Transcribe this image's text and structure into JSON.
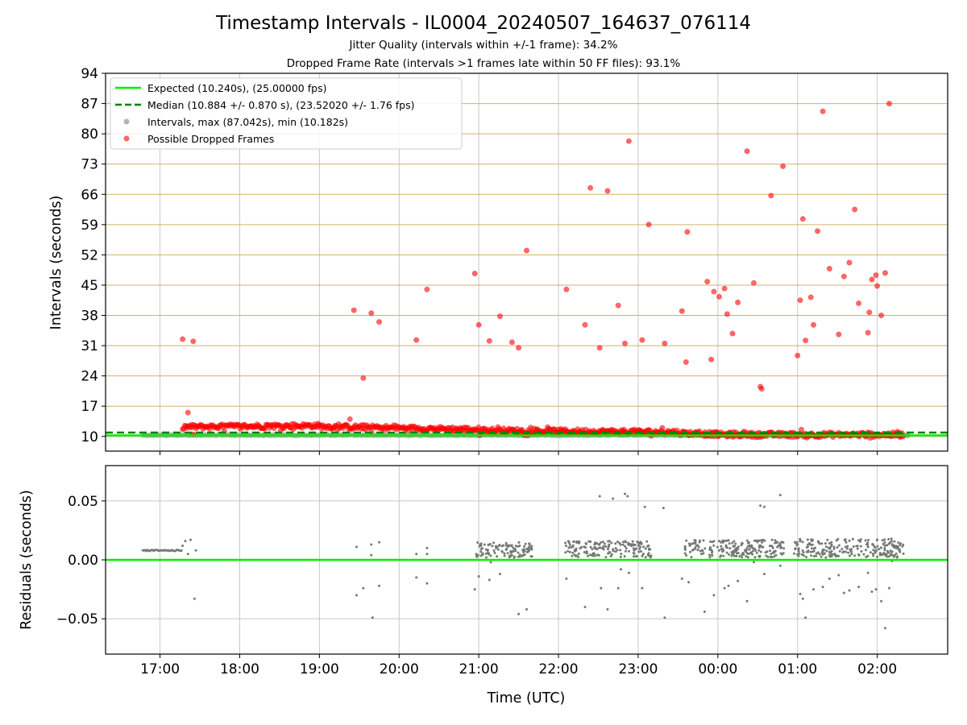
{
  "title": "Timestamp Intervals - IL0004_20240507_164637_076114",
  "subtitles": [
    "Jitter Quality (intervals within +/-1 frame): 34.2%",
    "Dropped Frame Rate (intervals >1 frames late within 50 FF files): 93.1%"
  ],
  "colors": {
    "expected": "#00ee00",
    "median": "#008000",
    "intervals": "#a0a0a0",
    "dropped": "#ff0000",
    "hgrid": "#d4b06a",
    "vgrid": "#c8c8c8",
    "residuals": "#777777"
  },
  "chart_data": [
    {
      "type": "scatter",
      "xlabel": "",
      "ylabel": "Intervals (seconds)",
      "xlim": [
        "16:19",
        "02:53"
      ],
      "ylim": [
        6.6,
        94
      ],
      "yticks": [
        10,
        17,
        24,
        31,
        38,
        45,
        52,
        59,
        66,
        73,
        80,
        87,
        94
      ],
      "grid": true,
      "legend_position": "top-left",
      "legend": [
        "Expected (10.240s), (25.00000 fps)",
        "Median (10.884 +/- 0.870 s), (23.52020 +/- 1.76 fps)",
        "Intervals, max (87.042s), min (10.182s)",
        "Possible Dropped Frames"
      ],
      "reference_lines": [
        {
          "name": "Expected (10.240s), (25.00000 fps)",
          "y": 10.24,
          "style": "solid"
        },
        {
          "name": "Median (10.884 +/- 0.870 s), (23.52020 +/- 1.76 fps)",
          "y": 10.884,
          "style": "dashed"
        }
      ],
      "series": [
        {
          "name": "Intervals, max (87.042s), min (10.182s)",
          "segments": [
            {
              "from": "16:47",
              "to": "17:17",
              "y": 10.3
            },
            {
              "from": "17:17",
              "to": "02:24",
              "y": 10.3
            }
          ]
        },
        {
          "name": "Possible Dropped Frames",
          "baseline_band": [
            {
              "from": "17:17",
              "to": "19:00",
              "y_from": 12.2,
              "y_to": 12.5
            },
            {
              "from": "19:00",
              "to": "21:00",
              "y_from": 12.3,
              "y_to": 11.6
            },
            {
              "from": "21:00",
              "to": "22:00",
              "y_from": 11.4,
              "y_to": 11.2
            },
            {
              "from": "22:00",
              "to": "23:30",
              "y_from": 11.2,
              "y_to": 11.0
            },
            {
              "from": "23:30",
              "to": "00:00",
              "y_from": 10.8,
              "y_to": 10.5
            },
            {
              "from": "00:00",
              "to": "02:20",
              "y_from": 10.4,
              "y_to": 10.4
            }
          ],
          "points": [
            [
              "17:17",
              32.5
            ],
            [
              "17:21",
              15.5
            ],
            [
              "17:25",
              10.5
            ],
            [
              "17:25",
              32.0
            ],
            [
              "19:26",
              39.2
            ],
            [
              "19:33",
              23.5
            ],
            [
              "19:39",
              38.5
            ],
            [
              "19:45",
              36.5
            ],
            [
              "19:23",
              14.0
            ],
            [
              "20:13",
              32.3
            ],
            [
              "20:21",
              44.0
            ],
            [
              "20:57",
              47.7
            ],
            [
              "21:00",
              35.8
            ],
            [
              "21:08",
              32.1
            ],
            [
              "21:16",
              37.8
            ],
            [
              "21:25",
              31.8
            ],
            [
              "21:30",
              30.5
            ],
            [
              "21:36",
              53.0
            ],
            [
              "22:06",
              44.0
            ],
            [
              "22:20",
              35.8
            ],
            [
              "22:24",
              67.5
            ],
            [
              "22:31",
              30.5
            ],
            [
              "22:37",
              66.8
            ],
            [
              "22:45",
              40.3
            ],
            [
              "22:50",
              31.5
            ],
            [
              "22:53",
              78.3
            ],
            [
              "23:03",
              32.3
            ],
            [
              "23:08",
              59.0
            ],
            [
              "23:20",
              31.5
            ],
            [
              "23:33",
              39.0
            ],
            [
              "23:36",
              27.2
            ],
            [
              "23:37",
              57.3
            ],
            [
              "23:52",
              45.8
            ],
            [
              "23:55",
              27.8
            ],
            [
              "23:57",
              43.5
            ],
            [
              "00:01",
              42.3
            ],
            [
              "00:05",
              44.2
            ],
            [
              "00:07",
              38.3
            ],
            [
              "00:11",
              33.8
            ],
            [
              "00:15",
              41.0
            ],
            [
              "00:22",
              76.0
            ],
            [
              "00:27",
              45.5
            ],
            [
              "00:32",
              21.5
            ],
            [
              "00:33",
              21.0
            ],
            [
              "00:40",
              65.7
            ],
            [
              "00:49",
              72.5
            ],
            [
              "01:00",
              28.7
            ],
            [
              "01:02",
              41.5
            ],
            [
              "01:04",
              60.3
            ],
            [
              "01:06",
              32.2
            ],
            [
              "01:10",
              42.2
            ],
            [
              "01:12",
              35.8
            ],
            [
              "01:15",
              57.5
            ],
            [
              "01:19",
              85.2
            ],
            [
              "01:24",
              48.8
            ],
            [
              "01:31",
              33.6
            ],
            [
              "01:35",
              47.0
            ],
            [
              "01:39",
              50.2
            ],
            [
              "01:43",
              62.5
            ],
            [
              "01:46",
              40.8
            ],
            [
              "01:53",
              34.0
            ],
            [
              "01:54",
              38.7
            ],
            [
              "01:56",
              46.3
            ],
            [
              "01:59",
              47.3
            ],
            [
              "02:00",
              44.8
            ],
            [
              "02:03",
              38.0
            ],
            [
              "02:06",
              47.8
            ],
            [
              "02:09",
              87.0
            ]
          ]
        }
      ]
    },
    {
      "type": "scatter",
      "xlabel": "Time (UTC)",
      "ylabel": "Residuals (seconds)",
      "xticks": [
        "17:00",
        "18:00",
        "19:00",
        "20:00",
        "21:00",
        "22:00",
        "23:00",
        "00:00",
        "01:00",
        "02:00"
      ],
      "yticks": [
        0.05,
        0.0,
        -0.05
      ],
      "ytick_labels": [
        "0.05",
        "0.00",
        "−0.05"
      ],
      "ylim": [
        -0.08,
        0.08
      ],
      "grid": true,
      "reference_lines": [
        {
          "y": 0.0,
          "style": "solid"
        }
      ],
      "series": [
        {
          "name": "",
          "segments": [
            {
              "from": "16:47",
              "to": "17:17",
              "y": 0.008
            }
          ],
          "clusters": [
            {
              "from": "20:58",
              "to": "21:40",
              "y_from": 0.002,
              "y_to": 0.015
            },
            {
              "from": "22:05",
              "to": "23:10",
              "y_from": 0.002,
              "y_to": 0.016
            },
            {
              "from": "23:35",
              "to": "00:50",
              "y_from": 0.002,
              "y_to": 0.017
            },
            {
              "from": "00:57",
              "to": "02:20",
              "y_from": 0.002,
              "y_to": 0.018
            }
          ],
          "points": [
            [
              "17:17",
              0.012
            ],
            [
              "17:19",
              0.016
            ],
            [
              "17:21",
              0.005
            ],
            [
              "17:23",
              0.017
            ],
            [
              "17:27",
              0.008
            ],
            [
              "17:26",
              -0.033
            ],
            [
              "19:28",
              0.011
            ],
            [
              "19:33",
              -0.024
            ],
            [
              "19:39",
              0.013
            ],
            [
              "19:39",
              0.004
            ],
            [
              "19:40",
              -0.049
            ],
            [
              "19:45",
              0.015
            ],
            [
              "19:45",
              -0.022
            ],
            [
              "19:28",
              -0.03
            ],
            [
              "20:13",
              -0.015
            ],
            [
              "20:13",
              0.005
            ],
            [
              "20:21",
              0.01
            ],
            [
              "20:21",
              0.005
            ],
            [
              "20:21",
              -0.02
            ],
            [
              "20:57",
              -0.025
            ],
            [
              "21:00",
              -0.014
            ],
            [
              "21:08",
              -0.017
            ],
            [
              "21:09",
              -0.002
            ],
            [
              "21:16",
              -0.012
            ],
            [
              "21:30",
              -0.046
            ],
            [
              "21:36",
              -0.042
            ],
            [
              "22:06",
              -0.016
            ],
            [
              "22:20",
              -0.04
            ],
            [
              "22:31",
              0.054
            ],
            [
              "22:32",
              -0.024
            ],
            [
              "22:37",
              -0.042
            ],
            [
              "22:41",
              0.052
            ],
            [
              "22:45",
              -0.024
            ],
            [
              "22:50",
              0.056
            ],
            [
              "22:52",
              0.054
            ],
            [
              "22:47",
              -0.008
            ],
            [
              "22:53",
              -0.011
            ],
            [
              "23:03",
              -0.024
            ],
            [
              "23:05",
              0.045
            ],
            [
              "23:19",
              0.044
            ],
            [
              "23:20",
              -0.049
            ],
            [
              "23:33",
              -0.016
            ],
            [
              "23:38",
              -0.019
            ],
            [
              "23:50",
              -0.044
            ],
            [
              "23:57",
              -0.03
            ],
            [
              "00:05",
              -0.024
            ],
            [
              "00:08",
              -0.022
            ],
            [
              "00:15",
              -0.018
            ],
            [
              "00:22",
              -0.035
            ],
            [
              "00:32",
              0.046
            ],
            [
              "00:35",
              0.045
            ],
            [
              "00:47",
              0.055
            ],
            [
              "00:27",
              -0.002
            ],
            [
              "00:35",
              -0.012
            ],
            [
              "00:47",
              -0.005
            ],
            [
              "01:02",
              -0.029
            ],
            [
              "01:04",
              -0.033
            ],
            [
              "01:06",
              -0.049
            ],
            [
              "01:12",
              -0.025
            ],
            [
              "01:19",
              -0.023
            ],
            [
              "01:24",
              -0.016
            ],
            [
              "01:31",
              -0.013
            ],
            [
              "01:35",
              -0.028
            ],
            [
              "01:39",
              -0.026
            ],
            [
              "01:46",
              -0.023
            ],
            [
              "01:53",
              -0.011
            ],
            [
              "01:56",
              -0.027
            ],
            [
              "01:59",
              -0.025
            ],
            [
              "02:03",
              -0.035
            ],
            [
              "02:06",
              -0.058
            ],
            [
              "02:09",
              -0.024
            ],
            [
              "02:11",
              -0.001
            ]
          ]
        }
      ]
    }
  ]
}
